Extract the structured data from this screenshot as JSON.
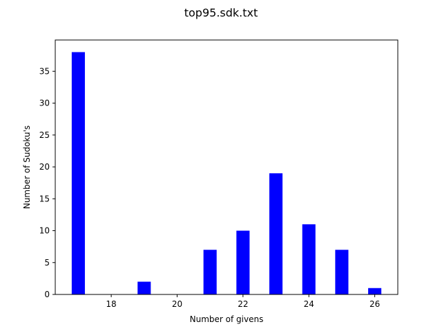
{
  "chart_data": {
    "type": "bar",
    "title": "top95.sdk.txt",
    "xlabel": "Number of givens",
    "ylabel": "Number of Sudoku's",
    "x": [
      17,
      18,
      19,
      20,
      21,
      22,
      23,
      24,
      25,
      26
    ],
    "values": [
      38,
      0,
      2,
      0,
      7,
      10,
      19,
      11,
      7,
      1
    ],
    "bar_width": 0.4,
    "bar_color": "#0000ff",
    "xlim": [
      16.3,
      26.7
    ],
    "ylim": [
      0,
      39.9
    ],
    "xticks": [
      18,
      20,
      22,
      24,
      26
    ],
    "xtick_labels": [
      "18",
      "20",
      "22",
      "24",
      "26"
    ],
    "yticks": [
      0,
      5,
      10,
      15,
      20,
      25,
      30,
      35
    ],
    "ytick_labels": [
      "0",
      "5",
      "10",
      "15",
      "20",
      "25",
      "30",
      "35"
    ],
    "grid": false,
    "legend": "none"
  }
}
